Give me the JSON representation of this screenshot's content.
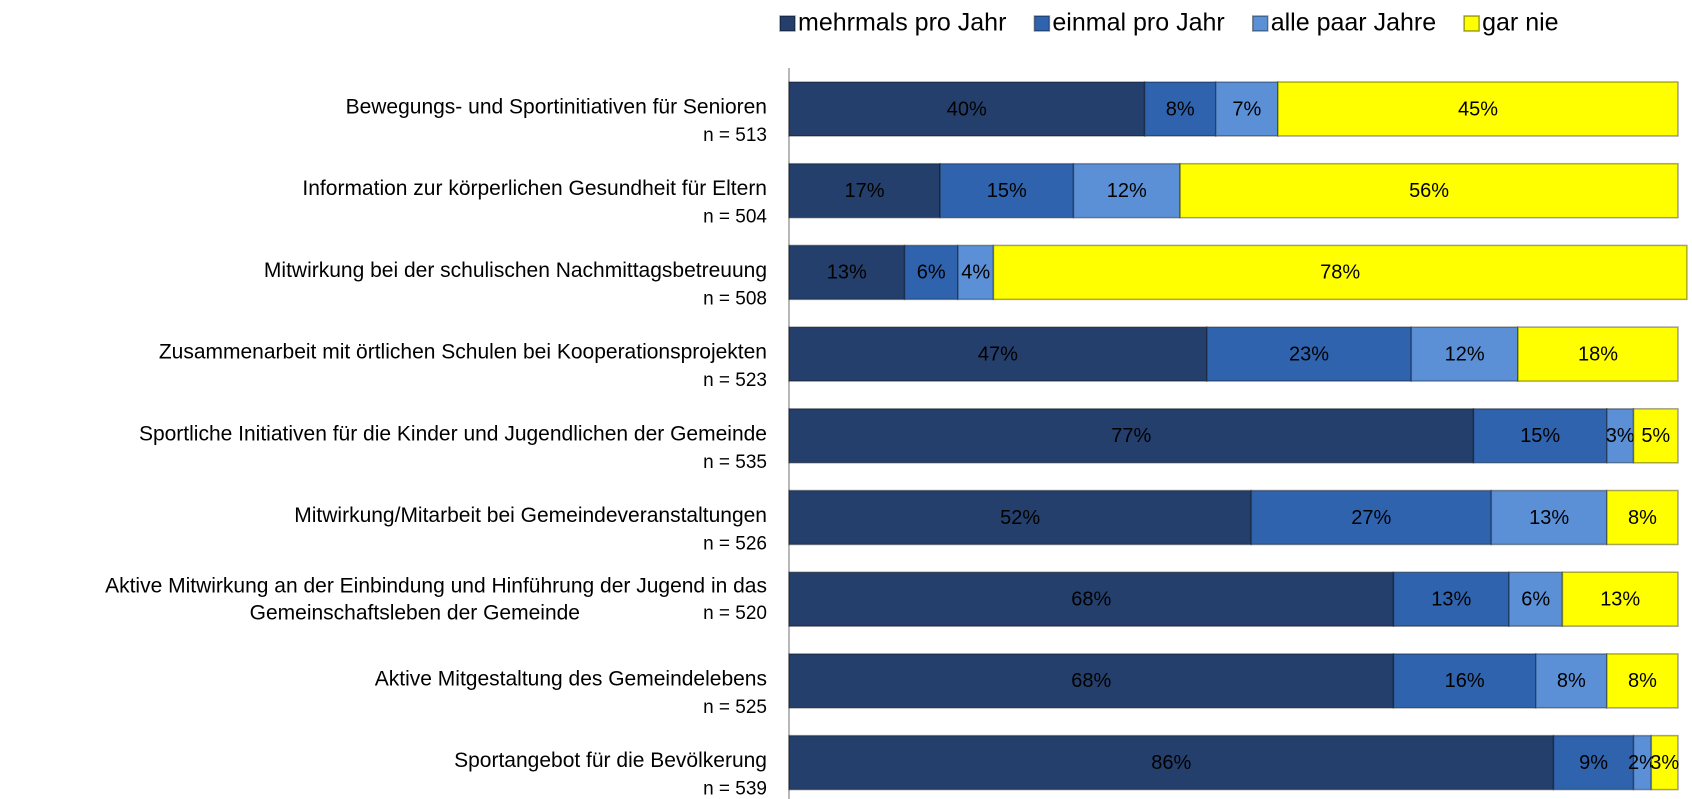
{
  "chart_data": {
    "type": "stacked_bar_horizontal",
    "categories": [
      [
        "Bewegungs- und Sportinitiativen für Senioren"
      ],
      [
        "Information zur körperlichen Gesundheit für Eltern"
      ],
      [
        "Mitwirkung bei der schulischen Nachmittagsbetreuung"
      ],
      [
        "Zusammenarbeit mit örtlichen Schulen bei Kooperationsprojekten"
      ],
      [
        "Sportliche Initiativen für die Kinder und Jugendlichen der Gemeinde"
      ],
      [
        "Mitwirkung/Mitarbeit bei Gemeindeveranstaltungen"
      ],
      [
        "Aktive Mitwirkung an der Einbindung und Hinführung der Jugend in das",
        "Gemeinschaftsleben der Gemeinde"
      ],
      [
        "Aktive Mitgestaltung des Gemeindelebens"
      ],
      [
        "Sportangebot für die Bevölkerung"
      ]
    ],
    "sample_sizes": [
      "n = 513",
      "n = 504",
      "n = 508",
      "n = 523",
      "n = 535",
      "n = 526",
      "n = 520",
      "n = 525",
      "n = 539"
    ],
    "series": [
      {
        "name": "mehrmals pro Jahr",
        "color": "#243f6b",
        "label_color": "#ffffff",
        "values": [
          40,
          17,
          13,
          47,
          77,
          52,
          68,
          68,
          86
        ],
        "value_labels": [
          "40%",
          "17%",
          "13%",
          "47%",
          "77%",
          "52%",
          "68%",
          "68%",
          "86%"
        ]
      },
      {
        "name": "einmal pro Jahr",
        "color": "#2f63ad",
        "label_color": "#1a1a1a",
        "values": [
          8,
          15,
          6,
          23,
          15,
          27,
          13,
          16,
          9
        ],
        "value_labels": [
          "8%",
          "15%",
          "6%",
          "23%",
          "15%",
          "27%",
          "13%",
          "16%",
          "9%"
        ]
      },
      {
        "name": "alle paar Jahre",
        "color": "#5b8fd6",
        "label_color": "#1a1a1a",
        "values": [
          7,
          12,
          4,
          12,
          3,
          13,
          6,
          8,
          2
        ],
        "value_labels": [
          "7%",
          "12%",
          "4%",
          "12%",
          "3%",
          "13%",
          "6%",
          "8%",
          "2%"
        ]
      },
      {
        "name": "gar nie",
        "color": "#ffff00",
        "label_color": "#1a1a1a",
        "values": [
          45,
          56,
          78,
          18,
          5,
          8,
          13,
          8,
          3
        ],
        "value_labels": [
          "45%",
          "56%",
          "78%",
          "18%",
          "5%",
          "8%",
          "13%",
          "8%",
          "3%"
        ]
      }
    ],
    "xlim": [
      0,
      100
    ],
    "legend": "top"
  }
}
